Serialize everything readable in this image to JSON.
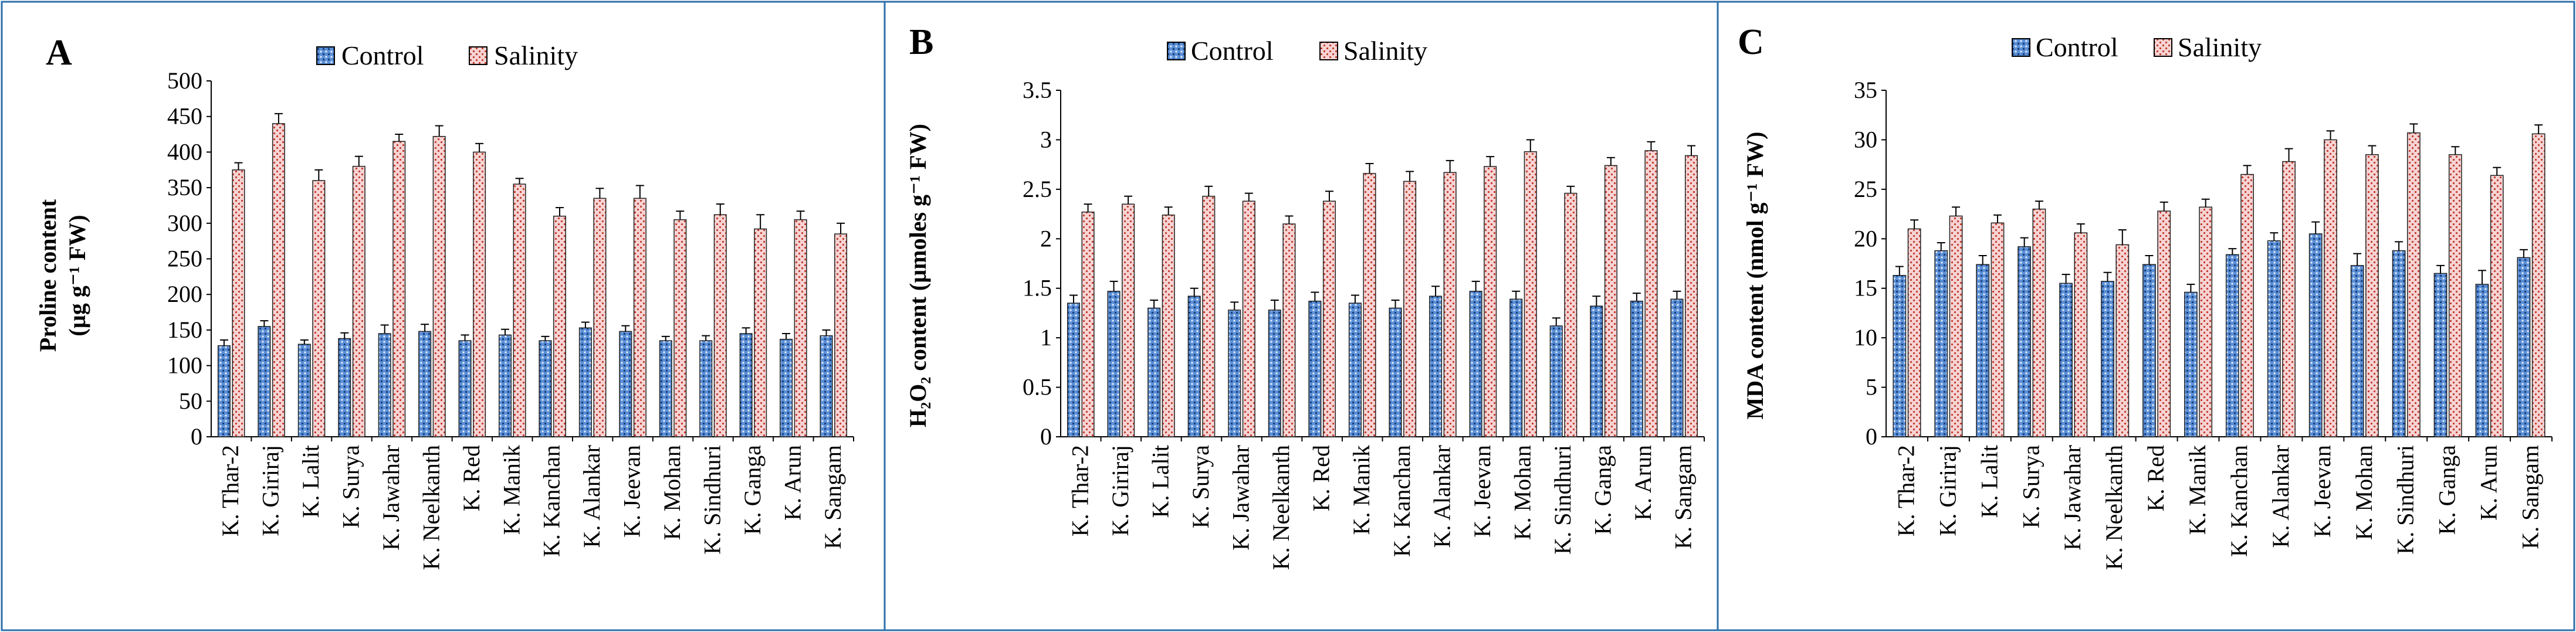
{
  "colors": {
    "control_fill": "#5b8fd6",
    "control_dots": "#163d7a",
    "salinity_fill": "#f3c6c6",
    "salinity_dots": "#c0392b",
    "panel_border": "#2f6fa8"
  },
  "chart_data": [
    {
      "type": "bar",
      "panel": "A",
      "ylabel_line1": "Proline content",
      "ylabel_line2": "(µg g⁻¹ FW)",
      "ylim": [
        0,
        500
      ],
      "yticks": [
        "0",
        "50",
        "100",
        "150",
        "200",
        "250",
        "300",
        "350",
        "400",
        "450",
        "500"
      ],
      "categories": [
        "K. Thar-2",
        "K. Giriraj",
        "K. Lalit",
        "K. Surya",
        "K. Jawahar",
        "K. Neelkanth",
        "K. Red",
        "K. Manik",
        "K. Kanchan",
        "K. Alankar",
        "K. Jeevan",
        "K. Mohan",
        "K. Sindhuri",
        "K. Ganga",
        "K. Arun",
        "K. Sangam"
      ],
      "series": [
        {
          "name": "Control",
          "values": [
            128,
            155,
            130,
            138,
            145,
            148,
            135,
            143,
            135,
            153,
            148,
            135,
            135,
            145,
            137,
            142
          ],
          "errors": [
            8,
            8,
            6,
            8,
            12,
            10,
            8,
            8,
            6,
            8,
            8,
            6,
            7,
            8,
            8,
            8
          ]
        },
        {
          "name": "Salinity",
          "values": [
            375,
            440,
            360,
            380,
            415,
            422,
            400,
            355,
            310,
            335,
            335,
            305,
            312,
            292,
            305,
            285
          ],
          "errors": [
            10,
            14,
            15,
            14,
            10,
            15,
            12,
            8,
            12,
            14,
            18,
            12,
            15,
            20,
            12,
            15
          ]
        }
      ]
    },
    {
      "type": "bar",
      "panel": "B",
      "ylabel_line1": "H₂O₂ content (µmoles g⁻¹ FW)",
      "ylim": [
        0,
        3.5
      ],
      "yticks": [
        "0",
        "0.5",
        "1",
        "1.5",
        "2",
        "2.5",
        "3",
        "3.5"
      ],
      "categories": [
        "K. Thar-2",
        "K. Giriraj",
        "K. Lalit",
        "K. Surya",
        "K. Jawahar",
        "K. Neelkanth",
        "K. Red",
        "K. Manik",
        "K. Kanchan",
        "K. Alankar",
        "K. Jeevan",
        "K. Mohan",
        "K. Sindhuri",
        "K. Ganga",
        "K. Arun",
        "K. Sangam"
      ],
      "series": [
        {
          "name": "Control",
          "values": [
            1.35,
            1.47,
            1.3,
            1.42,
            1.28,
            1.28,
            1.37,
            1.35,
            1.3,
            1.42,
            1.47,
            1.39,
            1.12,
            1.32,
            1.37,
            1.39
          ],
          "errors": [
            0.08,
            0.1,
            0.08,
            0.08,
            0.08,
            0.1,
            0.09,
            0.08,
            0.08,
            0.1,
            0.1,
            0.08,
            0.08,
            0.1,
            0.08,
            0.08
          ]
        },
        {
          "name": "Salinity",
          "values": [
            2.27,
            2.35,
            2.24,
            2.43,
            2.38,
            2.15,
            2.38,
            2.66,
            2.58,
            2.67,
            2.73,
            2.88,
            2.46,
            2.74,
            2.89,
            2.84
          ],
          "errors": [
            0.08,
            0.08,
            0.08,
            0.1,
            0.08,
            0.08,
            0.1,
            0.1,
            0.1,
            0.12,
            0.1,
            0.12,
            0.07,
            0.08,
            0.09,
            0.1
          ]
        }
      ]
    },
    {
      "type": "bar",
      "panel": "C",
      "ylabel_line1": "MDA content (nmol g⁻¹ FW)",
      "ylim": [
        0,
        35
      ],
      "yticks": [
        "0",
        "5",
        "10",
        "15",
        "20",
        "25",
        "30",
        "35"
      ],
      "categories": [
        "K. Thar-2",
        "K. Giriraj",
        "K. Lalit",
        "K. Surya",
        "K. Jawahar",
        "K. Neelkanth",
        "K. Red",
        "K. Manik",
        "K. Kanchan",
        "K. Alankar",
        "K. Jeevan",
        "K. Mohan",
        "K. Sindhuri",
        "K. Ganga",
        "K. Arun",
        "K. Sangam"
      ],
      "series": [
        {
          "name": "Control",
          "values": [
            16.3,
            18.8,
            17.4,
            19.2,
            15.5,
            15.7,
            17.4,
            14.6,
            18.4,
            19.8,
            20.5,
            17.3,
            18.8,
            16.5,
            15.4,
            18.1
          ],
          "errors": [
            0.9,
            0.8,
            0.9,
            0.9,
            0.9,
            0.9,
            0.9,
            0.8,
            0.6,
            0.8,
            1.2,
            1.2,
            0.9,
            0.8,
            1.4,
            0.8
          ]
        },
        {
          "name": "Salinity",
          "values": [
            21.0,
            22.3,
            21.6,
            23.0,
            20.6,
            19.4,
            22.8,
            23.2,
            26.5,
            27.8,
            30.0,
            28.5,
            30.7,
            28.5,
            26.4,
            30.6
          ],
          "errors": [
            0.9,
            0.9,
            0.8,
            0.8,
            0.9,
            1.5,
            0.9,
            0.8,
            0.9,
            1.3,
            0.9,
            0.9,
            0.9,
            0.8,
            0.8,
            0.9
          ]
        }
      ]
    }
  ]
}
